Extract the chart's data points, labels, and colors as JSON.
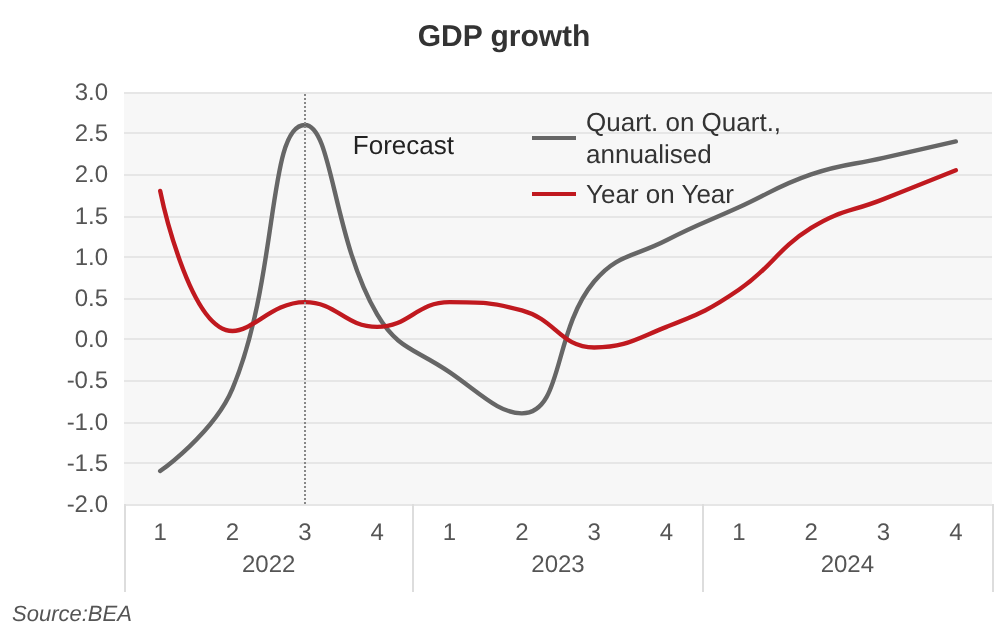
{
  "chart_data": {
    "type": "line",
    "title": "GDP growth",
    "categories": [
      "1",
      "2",
      "3",
      "4",
      "1",
      "2",
      "3",
      "4",
      "1",
      "2",
      "3",
      "4"
    ],
    "series": [
      {
        "name": "Quart. on Quart., annualised",
        "color": "#666666",
        "values": [
          -1.6,
          -0.6,
          2.6,
          0.3,
          -0.4,
          -0.9,
          0.7,
          1.2,
          1.6,
          2.0,
          2.2,
          2.4
        ]
      },
      {
        "name": "Year on Year",
        "color": "#c0191f",
        "values": [
          1.8,
          0.1,
          0.45,
          0.15,
          0.45,
          0.35,
          -0.1,
          0.15,
          0.6,
          1.35,
          1.7,
          2.05
        ]
      }
    ],
    "ylim": [
      -2,
      3
    ],
    "yticks": [
      {
        "value": -2,
        "label": "-2.0"
      },
      -1.5,
      {
        "value": -1,
        "label": "-1.0"
      },
      -0.5,
      {
        "value": 0,
        "label": "0.0"
      },
      0.5,
      {
        "value": 1,
        "label": "1.0"
      },
      1.5,
      {
        "value": 2,
        "label": "2.0"
      },
      2.5,
      {
        "value": 3,
        "label": "3.0"
      }
    ],
    "ref_lines": [
      {
        "axis": "x",
        "value": "3",
        "label": "Forecast",
        "line_style": "dotted",
        "color": "#888888"
      }
    ],
    "annotations": [
      "2022",
      "2023",
      "2024",
      "Source:BEA"
    ],
    "grid": "y",
    "legend": "top right",
    "marker": "none",
    "line_style": "solid"
  }
}
